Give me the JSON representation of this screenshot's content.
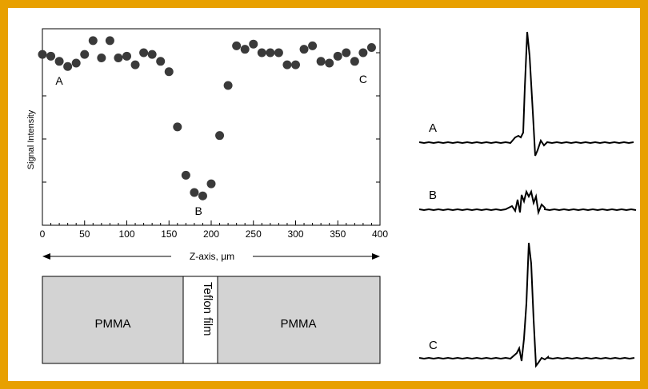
{
  "chart_data": [
    {
      "type": "scatter",
      "title": "",
      "xlabel": "Z-axis, µm",
      "ylabel": "Signal Intensity",
      "xlim": [
        0,
        400
      ],
      "x_ticks": [
        "0",
        "50",
        "100",
        "150",
        "200",
        "250",
        "300",
        "350",
        "400"
      ],
      "grid": false,
      "annotations": [
        {
          "text": "A",
          "x": 20,
          "y": 0.815
        },
        {
          "text": "B",
          "x": 185,
          "y": 0.06
        },
        {
          "text": "C",
          "x": 380,
          "y": 0.825
        }
      ],
      "series": [
        {
          "x": [
            0,
            10,
            20,
            30,
            40,
            50,
            60,
            70,
            80,
            90,
            100,
            110,
            120,
            130,
            140,
            150,
            160,
            170,
            180,
            190,
            200,
            210,
            220,
            230,
            240,
            250,
            260,
            270,
            280,
            290,
            300,
            310,
            320,
            330,
            340,
            350,
            360,
            370,
            380,
            390
          ],
          "y": [
            0.99,
            0.98,
            0.95,
            0.92,
            0.94,
            0.99,
            1.07,
            0.97,
            1.07,
            0.97,
            0.98,
            0.93,
            1.0,
            0.99,
            0.95,
            0.89,
            0.57,
            0.29,
            0.19,
            0.17,
            0.24,
            0.52,
            0.81,
            1.04,
            1.02,
            1.05,
            1.0,
            1.0,
            1.0,
            0.93,
            0.93,
            1.02,
            1.04,
            0.95,
            0.94,
            0.98,
            1.0,
            0.95,
            1.0,
            1.03
          ]
        }
      ]
    },
    {
      "type": "line",
      "title": "",
      "series": [
        {
          "name": "A"
        },
        {
          "name": "B"
        },
        {
          "name": "C"
        }
      ]
    }
  ],
  "diagram": {
    "left_block": "PMMA",
    "middle_block": "Teflon film",
    "right_block": "PMMA"
  }
}
